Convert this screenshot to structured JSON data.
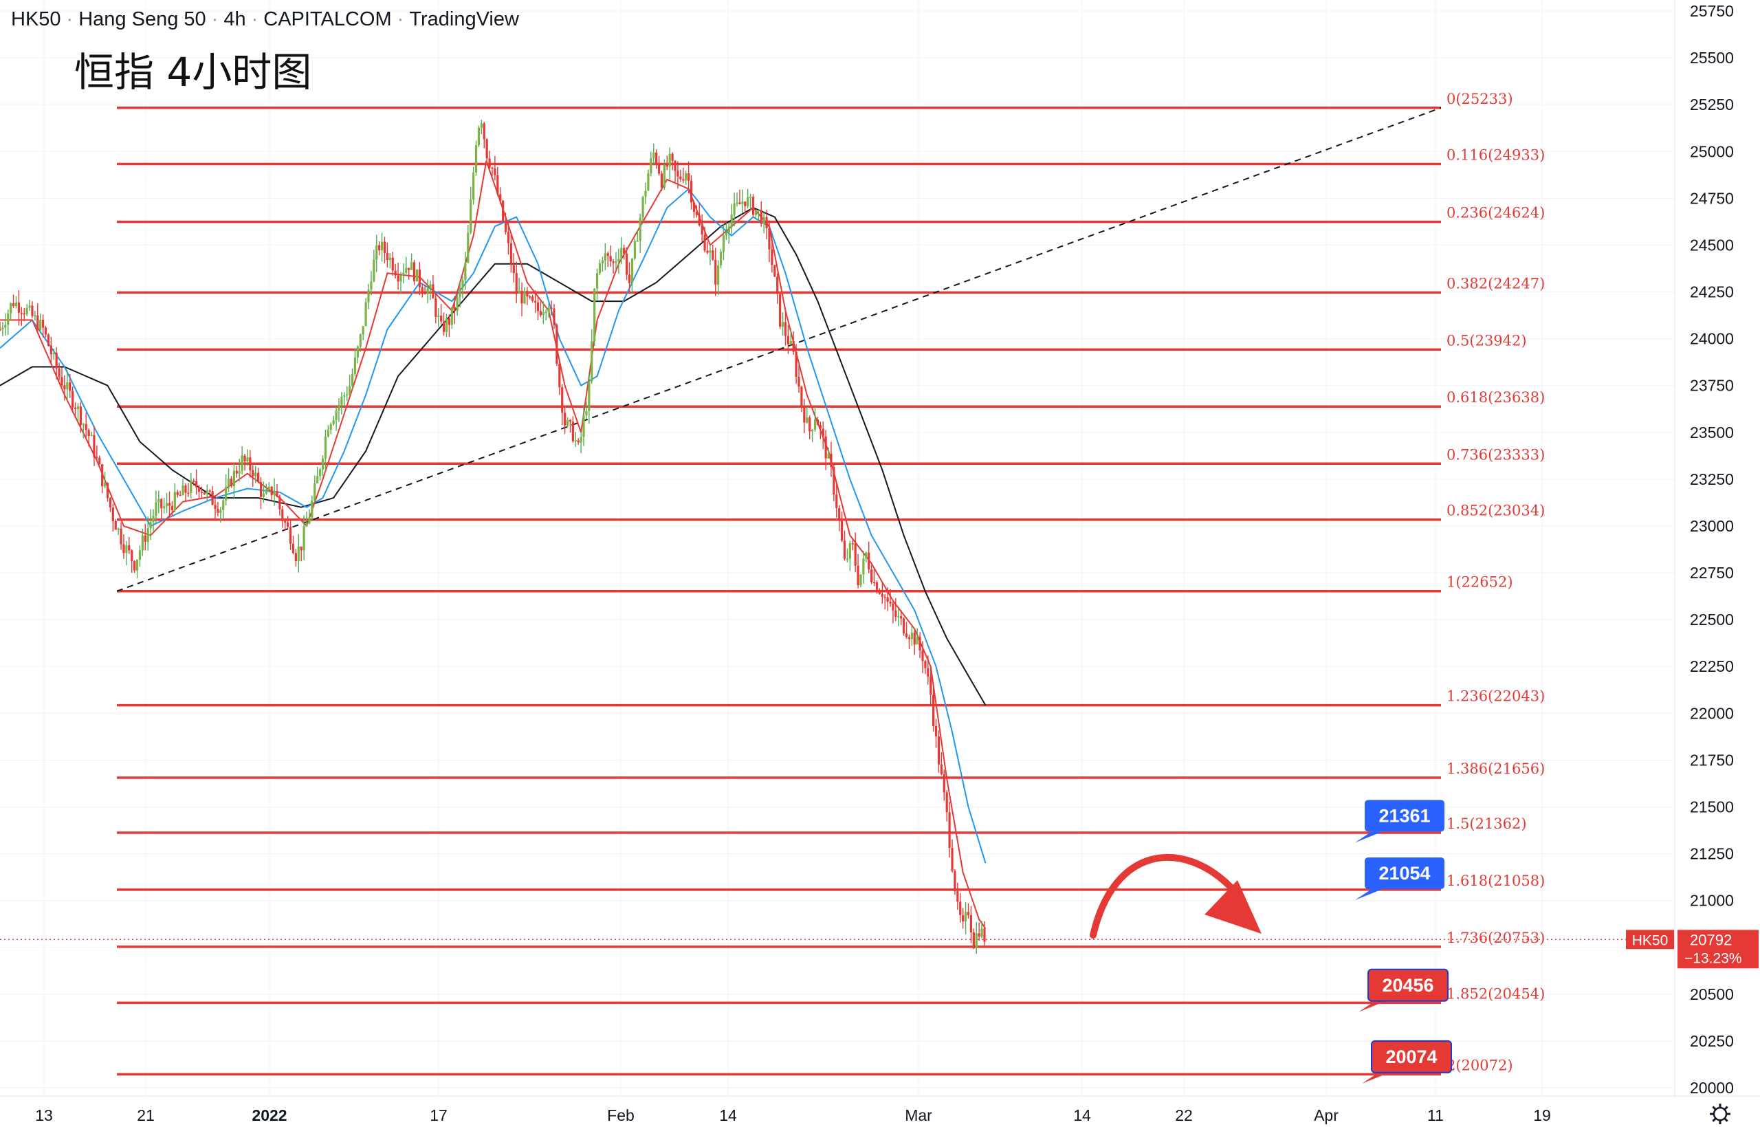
{
  "header": {
    "symbol": "HK50",
    "name": "Hang Seng 50",
    "interval": "4h",
    "source": "CAPITALCOM",
    "platform": "TradingView"
  },
  "title": "恒指 4小时图",
  "chart_data": {
    "type": "candlestick",
    "ylim": [
      19930,
      25800
    ],
    "y_ticks": [
      20000,
      20250,
      20500,
      20750,
      21000,
      21250,
      21500,
      21750,
      22000,
      22250,
      22500,
      22750,
      23000,
      23250,
      23500,
      23750,
      24000,
      24250,
      24500,
      24750,
      25000,
      25250,
      25500,
      25750
    ],
    "x_ticks": [
      "13",
      "21",
      "2022",
      "17",
      "Feb",
      "14",
      "Mar",
      "14",
      "22",
      "Apr",
      "11",
      "19"
    ],
    "fibonacci": [
      {
        "ratio": "0",
        "price": 25233,
        "label": "0(25233)"
      },
      {
        "ratio": "0.116",
        "price": 24933,
        "label": "0.116(24933)"
      },
      {
        "ratio": "0.236",
        "price": 24624,
        "label": "0.236(24624)"
      },
      {
        "ratio": "0.382",
        "price": 24247,
        "label": "0.382(24247)"
      },
      {
        "ratio": "0.5",
        "price": 23942,
        "label": "0.5(23942)"
      },
      {
        "ratio": "0.618",
        "price": 23638,
        "label": "0.618(23638)"
      },
      {
        "ratio": "0.736",
        "price": 23333,
        "label": "0.736(23333)"
      },
      {
        "ratio": "0.852",
        "price": 23034,
        "label": "0.852(23034)"
      },
      {
        "ratio": "1",
        "price": 22652,
        "label": "1(22652)"
      },
      {
        "ratio": "1.236",
        "price": 22043,
        "label": "1.236(22043)"
      },
      {
        "ratio": "1.386",
        "price": 21656,
        "label": "1.386(21656)"
      },
      {
        "ratio": "1.5",
        "price": 21362,
        "label": "1.5(21362)"
      },
      {
        "ratio": "1.618",
        "price": 21058,
        "label": "1.618(21058)"
      },
      {
        "ratio": "1.736",
        "price": 20753,
        "label": "1.736(20753)"
      },
      {
        "ratio": "1.852",
        "price": 20454,
        "label": "1.852(20454)"
      },
      {
        "ratio": "2",
        "price": 20072,
        "label": "2(20072)"
      }
    ],
    "callouts": [
      {
        "text": "21361",
        "price": 21361,
        "color": "#2962ff"
      },
      {
        "text": "21054",
        "price": 21054,
        "color": "#2962ff"
      },
      {
        "text": "20456",
        "price": 20456,
        "color": "#e53935"
      },
      {
        "text": "20074",
        "price": 20074,
        "color": "#e53935"
      }
    ],
    "current": {
      "symbol": "HK50",
      "price": 20792,
      "change": "−13.23%"
    },
    "trend_line": {
      "from_price": 22652,
      "to_price": 25233
    },
    "price_path": [
      [
        0,
        24050
      ],
      [
        12,
        24200
      ],
      [
        25,
        24150
      ],
      [
        40,
        24050
      ],
      [
        55,
        23800
      ],
      [
        70,
        23650
      ],
      [
        85,
        23450
      ],
      [
        95,
        23250
      ],
      [
        105,
        23050
      ],
      [
        115,
        22900
      ],
      [
        125,
        22800
      ],
      [
        135,
        22950
      ],
      [
        145,
        23100
      ],
      [
        155,
        23100
      ],
      [
        165,
        23150
      ],
      [
        175,
        23200
      ],
      [
        185,
        23220
      ],
      [
        195,
        23150
      ],
      [
        205,
        23100
      ],
      [
        215,
        23250
      ],
      [
        225,
        23350
      ],
      [
        235,
        23300
      ],
      [
        245,
        23150
      ],
      [
        255,
        23200
      ],
      [
        262,
        23050
      ],
      [
        270,
        22950
      ],
      [
        275,
        22850
      ],
      [
        280,
        22900
      ],
      [
        287,
        23050
      ],
      [
        295,
        23250
      ],
      [
        305,
        23550
      ],
      [
        315,
        23650
      ],
      [
        325,
        23750
      ],
      [
        335,
        24000
      ],
      [
        345,
        24350
      ],
      [
        352,
        24500
      ],
      [
        360,
        24450
      ],
      [
        370,
        24350
      ],
      [
        380,
        24400
      ],
      [
        390,
        24300
      ],
      [
        400,
        24250
      ],
      [
        410,
        24050
      ],
      [
        418,
        24100
      ],
      [
        425,
        24200
      ],
      [
        432,
        24350
      ],
      [
        438,
        24750
      ],
      [
        443,
        25100
      ],
      [
        447,
        25200
      ],
      [
        452,
        25000
      ],
      [
        458,
        24900
      ],
      [
        465,
        24700
      ],
      [
        472,
        24500
      ],
      [
        480,
        24250
      ],
      [
        490,
        24200
      ],
      [
        500,
        24150
      ],
      [
        510,
        24200
      ],
      [
        515,
        24050
      ],
      [
        520,
        23750
      ],
      [
        525,
        23550
      ],
      [
        532,
        23500
      ],
      [
        538,
        23400
      ],
      [
        542,
        23550
      ],
      [
        548,
        23750
      ],
      [
        553,
        24300
      ],
      [
        560,
        24450
      ],
      [
        570,
        24400
      ],
      [
        578,
        24500
      ],
      [
        585,
        24300
      ],
      [
        592,
        24550
      ],
      [
        598,
        24750
      ],
      [
        603,
        24900
      ],
      [
        608,
        25000
      ],
      [
        615,
        24850
      ],
      [
        622,
        24950
      ],
      [
        630,
        24850
      ],
      [
        638,
        24900
      ],
      [
        645,
        24700
      ],
      [
        652,
        24550
      ],
      [
        660,
        24450
      ],
      [
        666,
        24300
      ],
      [
        672,
        24550
      ],
      [
        678,
        24650
      ],
      [
        685,
        24700
      ],
      [
        692,
        24750
      ],
      [
        700,
        24700
      ],
      [
        708,
        24650
      ],
      [
        715,
        24500
      ],
      [
        720,
        24300
      ],
      [
        725,
        24100
      ],
      [
        732,
        24000
      ],
      [
        738,
        23900
      ],
      [
        745,
        23650
      ],
      [
        752,
        23500
      ],
      [
        758,
        23600
      ],
      [
        765,
        23450
      ],
      [
        772,
        23300
      ],
      [
        778,
        23100
      ],
      [
        785,
        22800
      ],
      [
        792,
        22900
      ],
      [
        798,
        22700
      ],
      [
        805,
        22850
      ],
      [
        812,
        22700
      ],
      [
        820,
        22650
      ],
      [
        828,
        22550
      ],
      [
        835,
        22500
      ],
      [
        842,
        22450
      ],
      [
        850,
        22400
      ],
      [
        858,
        22300
      ],
      [
        865,
        22100
      ],
      [
        870,
        21850
      ],
      [
        875,
        21650
      ],
      [
        880,
        21450
      ],
      [
        885,
        21200
      ],
      [
        890,
        20950
      ],
      [
        895,
        20850
      ],
      [
        900,
        20950
      ],
      [
        905,
        20780
      ],
      [
        910,
        20850
      ],
      [
        916,
        20792
      ]
    ],
    "ema_red": [
      [
        0,
        24100
      ],
      [
        30,
        24100
      ],
      [
        60,
        23700
      ],
      [
        90,
        23350
      ],
      [
        115,
        23000
      ],
      [
        140,
        22950
      ],
      [
        170,
        23130
      ],
      [
        200,
        23160
      ],
      [
        230,
        23280
      ],
      [
        260,
        23150
      ],
      [
        285,
        23000
      ],
      [
        300,
        23250
      ],
      [
        320,
        23600
      ],
      [
        340,
        23950
      ],
      [
        360,
        24350
      ],
      [
        390,
        24330
      ],
      [
        420,
        24150
      ],
      [
        440,
        24550
      ],
      [
        452,
        24950
      ],
      [
        470,
        24650
      ],
      [
        490,
        24300
      ],
      [
        510,
        24150
      ],
      [
        525,
        23750
      ],
      [
        540,
        23500
      ],
      [
        555,
        24100
      ],
      [
        575,
        24400
      ],
      [
        600,
        24650
      ],
      [
        620,
        24850
      ],
      [
        640,
        24800
      ],
      [
        660,
        24500
      ],
      [
        680,
        24600
      ],
      [
        700,
        24700
      ],
      [
        715,
        24600
      ],
      [
        730,
        24150
      ],
      [
        750,
        23700
      ],
      [
        770,
        23400
      ],
      [
        790,
        22950
      ],
      [
        810,
        22800
      ],
      [
        830,
        22600
      ],
      [
        850,
        22450
      ],
      [
        865,
        22250
      ],
      [
        880,
        21650
      ],
      [
        895,
        21150
      ],
      [
        910,
        20900
      ],
      [
        916,
        20850
      ]
    ],
    "ema_blue": [
      [
        0,
        23950
      ],
      [
        30,
        24100
      ],
      [
        60,
        23850
      ],
      [
        90,
        23500
      ],
      [
        115,
        23250
      ],
      [
        140,
        23000
      ],
      [
        170,
        23080
      ],
      [
        200,
        23150
      ],
      [
        230,
        23200
      ],
      [
        260,
        23180
      ],
      [
        285,
        23100
      ],
      [
        300,
        23150
      ],
      [
        320,
        23400
      ],
      [
        340,
        23700
      ],
      [
        360,
        24050
      ],
      [
        390,
        24300
      ],
      [
        420,
        24200
      ],
      [
        440,
        24350
      ],
      [
        460,
        24600
      ],
      [
        480,
        24650
      ],
      [
        500,
        24400
      ],
      [
        520,
        24000
      ],
      [
        540,
        23750
      ],
      [
        555,
        23800
      ],
      [
        575,
        24150
      ],
      [
        600,
        24450
      ],
      [
        620,
        24700
      ],
      [
        640,
        24800
      ],
      [
        660,
        24650
      ],
      [
        680,
        24550
      ],
      [
        700,
        24650
      ],
      [
        715,
        24600
      ],
      [
        730,
        24350
      ],
      [
        750,
        23950
      ],
      [
        770,
        23600
      ],
      [
        790,
        23250
      ],
      [
        810,
        22950
      ],
      [
        830,
        22750
      ],
      [
        850,
        22550
      ],
      [
        870,
        22250
      ],
      [
        885,
        21900
      ],
      [
        900,
        21500
      ],
      [
        916,
        21200
      ]
    ],
    "ema_black": [
      [
        0,
        23750
      ],
      [
        30,
        23850
      ],
      [
        60,
        23850
      ],
      [
        100,
        23750
      ],
      [
        130,
        23450
      ],
      [
        160,
        23300
      ],
      [
        200,
        23150
      ],
      [
        240,
        23150
      ],
      [
        280,
        23100
      ],
      [
        310,
        23150
      ],
      [
        340,
        23400
      ],
      [
        370,
        23800
      ],
      [
        400,
        24000
      ],
      [
        430,
        24200
      ],
      [
        460,
        24400
      ],
      [
        490,
        24400
      ],
      [
        520,
        24300
      ],
      [
        550,
        24200
      ],
      [
        580,
        24200
      ],
      [
        610,
        24300
      ],
      [
        640,
        24450
      ],
      [
        670,
        24600
      ],
      [
        700,
        24700
      ],
      [
        720,
        24650
      ],
      [
        740,
        24450
      ],
      [
        760,
        24200
      ],
      [
        780,
        23900
      ],
      [
        800,
        23600
      ],
      [
        820,
        23300
      ],
      [
        840,
        22950
      ],
      [
        860,
        22650
      ],
      [
        880,
        22400
      ],
      [
        900,
        22200
      ],
      [
        916,
        22043
      ]
    ]
  }
}
